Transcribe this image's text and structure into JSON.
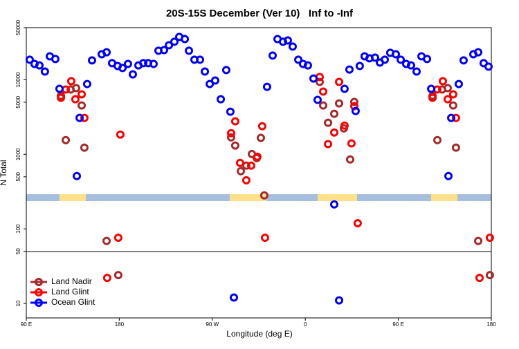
{
  "chart_data": {
    "type": "scatter",
    "title": "20S-15S December (Ver 10)   Inf to -Inf",
    "x_label": "Longitude (deg E)",
    "y_label": "N Total",
    "log_y": true,
    "legend": "lower left",
    "xlim": [
      90,
      540
    ],
    "ylim": [
      6.4,
      50000
    ],
    "xticks": [
      {
        "value": 90,
        "label": "90 E"
      },
      180,
      {
        "value": 270,
        "label": "90 W"
      },
      {
        "value": 360,
        "label": "0"
      },
      {
        "value": 450,
        "label": "90 E"
      },
      180
    ],
    "yticks": [
      10,
      50,
      100,
      500,
      1000,
      5000,
      10000,
      50000
    ],
    "series": [
      {
        "name": "Land Nadir",
        "color": "#a52a2a",
        "x": [
          123.5,
          128.2,
          132.9,
          138.2,
          143.6,
          146.2,
          167.7,
          179,
          288.2,
          292.2,
          297.6,
          302.9,
          308.3,
          313,
          317,
          320.3,
          373.9,
          377.3,
          382,
          388,
          392.7,
          397.3,
          403.4,
          407.4,
          483.1,
          487.8,
          492.4,
          497.8,
          503.1,
          505.8,
          527.3,
          538.6
        ],
        "values": [
          6100,
          1550,
          7400,
          7720,
          4520,
          1230,
          69,
          24,
          1690,
          1310,
          593,
          705,
          1010,
          891,
          1660,
          281,
          9360,
          4520,
          2650,
          3500,
          4820,
          2230,
          853,
          5040,
          6100,
          1550,
          7400,
          7720,
          4520,
          1230,
          69,
          24
        ]
      },
      {
        "name": "Land Glint",
        "color": "#ff0000",
        "x": [
          123.5,
          128.2,
          133.5,
          137.5,
          143.6,
          146.2,
          168.3,
          179,
          181,
          288.2,
          292.2,
          296.9,
          302.9,
          307.6,
          313.6,
          318.3,
          321,
          373.9,
          377.3,
          382,
          388,
          392.7,
          398,
          404.7,
          407.4,
          410.7,
          483.1,
          487.8,
          493.1,
          497.8,
          503.1,
          505.8,
          528.6,
          538.6
        ],
        "values": [
          5730,
          7400,
          9560,
          5480,
          6370,
          3080,
          22,
          76,
          1840,
          1920,
          2770,
          767,
          449,
          705,
          929,
          2380,
          76,
          10900,
          6940,
          1370,
          1960,
          9360,
          2430,
          1400,
          4420,
          119,
          5730,
          7400,
          9560,
          5480,
          6370,
          3080,
          22,
          76
        ]
      },
      {
        "name": "Ocean Glint",
        "color": "#0000ff",
        "x": [
          93.3,
          98,
          102.7,
          108,
          112.8,
          118.1,
          122.1,
          138.9,
          141.6,
          148.9,
          153.6,
          163,
          167.7,
          173,
          178.4,
          183.1,
          188.4,
          193.1,
          198.5,
          203.2,
          207.9,
          213.2,
          217.9,
          223.3,
          228,
          233.3,
          238,
          243.4,
          247.4,
          252.7,
          258.1,
          262.8,
          267.5,
          272.8,
          278.2,
          283.5,
          287.5,
          290.9,
          323,
          328.4,
          333.1,
          338.4,
          343.1,
          347.8,
          353.2,
          357.8,
          362.5,
          367.9,
          371.9,
          388,
          392.7,
          398,
          402.7,
          408.7,
          412.7,
          417.4,
          422.1,
          427.5,
          432.2,
          436.9,
          442.2,
          447.6,
          452.3,
          457.6,
          462.3,
          467.7,
          472.4,
          477.8,
          481.8,
          498.5,
          501.2,
          508.5,
          513.2,
          522.6,
          527.3,
          532.6,
          537.3
        ],
        "values": [
          18600,
          16300,
          15600,
          12900,
          20600,
          19000,
          7560,
          511,
          3080,
          8770,
          18200,
          22000,
          23400,
          16700,
          15300,
          14400,
          16300,
          11800,
          15600,
          16700,
          16700,
          16300,
          24500,
          25000,
          29000,
          32400,
          37600,
          35200,
          24500,
          18600,
          18600,
          12900,
          8770,
          9770,
          5480,
          13500,
          3730,
          12,
          8050,
          21100,
          35200,
          32400,
          33700,
          27900,
          18600,
          16300,
          15600,
          10400,
          5370,
          213,
          11,
          7560,
          13700,
          3810,
          15300,
          20600,
          19400,
          19800,
          17000,
          18600,
          23000,
          22000,
          18600,
          16300,
          15600,
          12900,
          20600,
          19000,
          7560,
          511,
          3080,
          8770,
          18200,
          22000,
          23400,
          16700,
          15000
        ]
      }
    ]
  }
}
